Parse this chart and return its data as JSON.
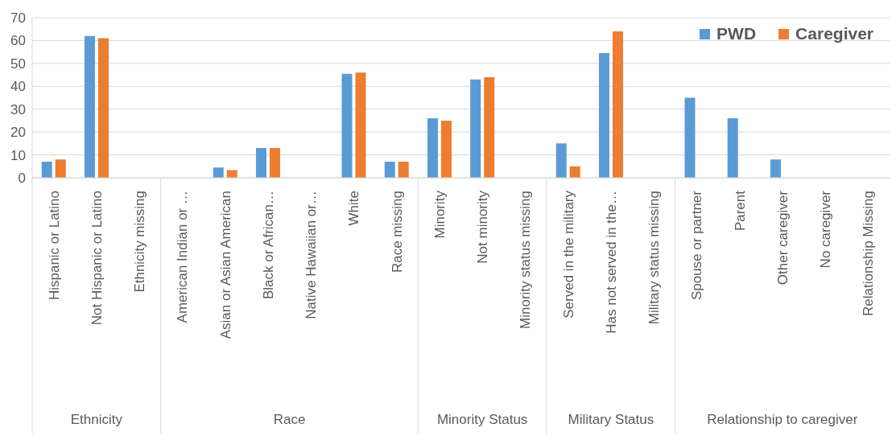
{
  "chart_data": {
    "type": "bar",
    "categories": [
      "Hispanic or Latino",
      "Not Hispanic or Latino",
      "Ethnicity missing",
      "American Indian or …",
      "Asian or Asian American",
      "Black or African…",
      "Native Hawaiian or…",
      "White",
      "Race missing",
      "Minority",
      "Not minority",
      "Minority status missing",
      "Served in the military",
      "Has not served in the…",
      "Military status missing",
      "Spouse or partner",
      "Parent",
      "Other caregiver",
      "No caregiver",
      "Relationship Missing"
    ],
    "series": [
      {
        "name": "PWD",
        "color": "#5b9bd5",
        "values": [
          7,
          62,
          null,
          null,
          4.5,
          13,
          null,
          45.5,
          7,
          26,
          43,
          null,
          15,
          54.5,
          null,
          35,
          26,
          8,
          null,
          null
        ]
      },
      {
        "name": "Caregiver",
        "color": "#ed7d31",
        "values": [
          8,
          61,
          null,
          null,
          3.3,
          13,
          null,
          46,
          7,
          25,
          44,
          null,
          5,
          64,
          null,
          null,
          null,
          null,
          null,
          null
        ]
      }
    ],
    "annotations": [
      "Ethnicity",
      "Race",
      "Minority Status",
      "Military Status",
      "Relationship to caregiver"
    ],
    "ylim": [
      0,
      70
    ],
    "yticks": [
      0,
      10,
      20,
      30,
      40,
      50,
      60,
      70
    ],
    "grid": "y",
    "legend": "top right"
  }
}
